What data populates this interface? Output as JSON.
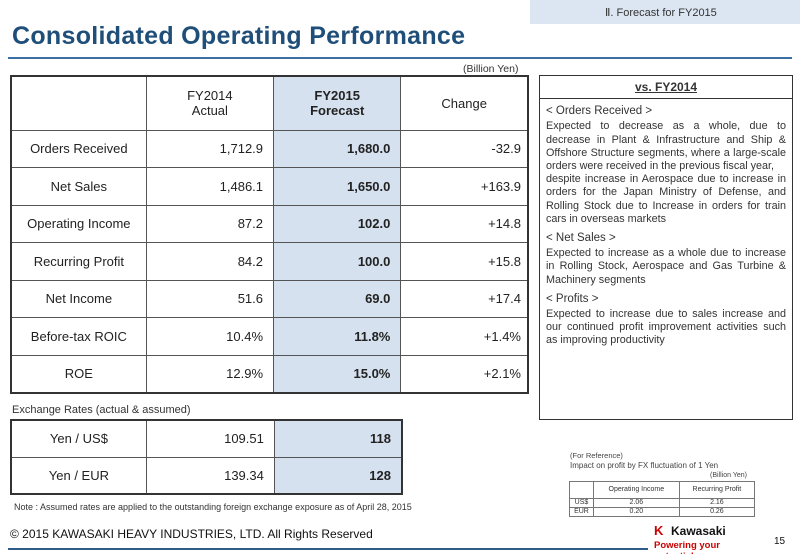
{
  "header": {
    "section_tag": "Ⅱ.  Forecast for FY2015",
    "title": "Consolidated Operating Performance",
    "unit": "(Billion Yen)"
  },
  "main_table": {
    "headers": {
      "col1": [
        "FY2014",
        "Actual"
      ],
      "col2": [
        "FY2015",
        "Forecast"
      ],
      "col3": "Change"
    },
    "rows": [
      {
        "label": "Orders Received",
        "actual": "1,712.9",
        "forecast": "1,680.0",
        "change": "-32.9"
      },
      {
        "label": "Net Sales",
        "actual": "1,486.1",
        "forecast": "1,650.0",
        "change": "+163.9"
      },
      {
        "label": "Operating Income",
        "actual": "87.2",
        "forecast": "102.0",
        "change": "+14.8"
      },
      {
        "label": "Recurring Profit",
        "actual": "84.2",
        "forecast": "100.0",
        "change": "+15.8"
      },
      {
        "label": "Net Income",
        "actual": "51.6",
        "forecast": "69.0",
        "change": "+17.4"
      },
      {
        "label": "Before-tax ROIC",
        "actual": "10.4%",
        "forecast": "11.8%",
        "change": "+1.4%"
      },
      {
        "label": "ROE",
        "actual": "12.9%",
        "forecast": "15.0%",
        "change": "+2.1%"
      }
    ]
  },
  "exchange": {
    "label": "Exchange Rates (actual & assumed)",
    "rows": [
      {
        "label": "Yen / US$",
        "actual": "109.51",
        "forecast": "118"
      },
      {
        "label": "Yen / EUR",
        "actual": "139.34",
        "forecast": "128"
      }
    ],
    "note": "Note : Assumed rates are applied to the outstanding foreign exchange exposure as of April 28, 2015"
  },
  "side_panel": {
    "title": "vs. FY2014",
    "sections": [
      {
        "heading": "< Orders Received >",
        "text": "Expected to decrease as a whole, due to decrease in Plant & Infrastructure  and Ship & Offshore Structure segments, where a large-scale orders were received in the previous fiscal year,\ndespite increase in Aerospace due to increase in orders  for the Japan Ministry of Defense, and Rolling Stock due to Increase in orders for train cars in overseas markets"
      },
      {
        "heading": "< Net Sales >",
        "text": "Expected to increase as a whole due to increase in Rolling Stock, Aerospace and Gas Turbine & Machinery segments"
      },
      {
        "heading": "< Profits >",
        "text": "Expected to increase due to sales increase and our continued profit improvement activities such as improving productivity"
      }
    ]
  },
  "reference": {
    "title": "(For Reference)",
    "subtitle": "Impact on profit by FX fluctuation of 1 Yen",
    "unit": "(Billion Yen)",
    "headers": [
      "Operating Income",
      "Recurring Profit"
    ],
    "rows": [
      {
        "label": "US$",
        "operating": "2.06",
        "recurring": "2.16"
      },
      {
        "label": "EUR",
        "operating": "0.20",
        "recurring": "0.26"
      }
    ]
  },
  "footer": {
    "copyright": "© 2015 KAWASAKI HEAVY INDUSTRIES, LTD. All Rights Reserved",
    "logo_mark": "K",
    "logo_name": "Kawasaki",
    "logo_tagline": "Powering your potential",
    "page_number": "15"
  },
  "colors": {
    "title": "#1f4e79",
    "forecast_fill": "#d6e1ef",
    "section_tag_fill": "#dce6f2",
    "brand_red": "#cc0000"
  }
}
